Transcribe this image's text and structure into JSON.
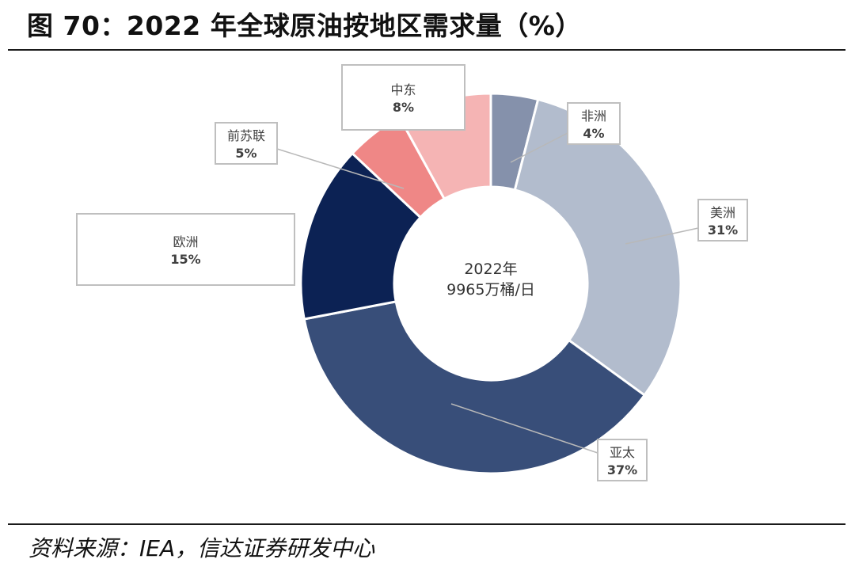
{
  "title": "图 70：2022 年全球原油按地区需求量（%）",
  "source": "资料来源：IEA，信达证券研发中心",
  "chart_data": {
    "type": "pie",
    "variant": "donut",
    "center_label": [
      "2022年",
      "9965万桶/日"
    ],
    "slices": [
      {
        "label": "非洲",
        "value": 4,
        "value_label": "4%",
        "color": "#8591ab"
      },
      {
        "label": "美洲",
        "value": 31,
        "value_label": "31%",
        "color": "#b2bccd"
      },
      {
        "label": "亚太",
        "value": 37,
        "value_label": "37%",
        "color": "#384e79"
      },
      {
        "label": "欧洲",
        "value": 15,
        "value_label": "15%",
        "color": "#0c2254"
      },
      {
        "label": "前苏联",
        "value": 5,
        "value_label": "5%",
        "color": "#ef8786"
      },
      {
        "label": "中东",
        "value": 8,
        "value_label": "8%",
        "color": "#f5b4b4"
      }
    ]
  }
}
